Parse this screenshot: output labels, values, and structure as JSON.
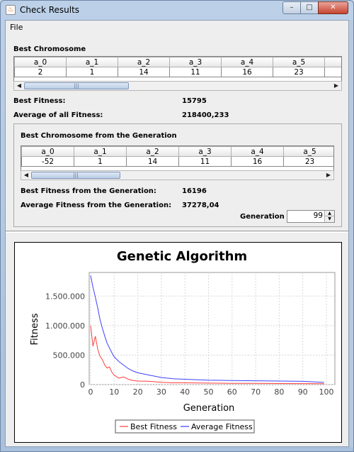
{
  "window": {
    "title": "Check Results"
  },
  "menu": {
    "file": "File"
  },
  "best": {
    "section_label": "Best Chromosome",
    "headers": [
      "a_0",
      "a_1",
      "a_2",
      "a_3",
      "a_4",
      "a_5"
    ],
    "values": [
      "2",
      "1",
      "14",
      "11",
      "16",
      "23"
    ],
    "fitness_label": "Best Fitness:",
    "fitness_value": "15795",
    "avg_label": "Average of all Fitness:",
    "avg_value": "218400,233"
  },
  "generation": {
    "section_label": "Best Chromosome from the Generation",
    "headers": [
      "a_0",
      "a_1",
      "a_2",
      "a_3",
      "a_4",
      "a_5"
    ],
    "values": [
      "-52",
      "1",
      "14",
      "11",
      "16",
      "23"
    ],
    "best_fitness_label": "Best Fitness from the Generation:",
    "best_fitness_value": "16196",
    "avg_fitness_label": "Average Fitness from the Generation:",
    "avg_fitness_value": "37278,04",
    "spinner_label": "Generation",
    "spinner_value": "99"
  },
  "colors": {
    "best_series": "#ff4040",
    "avg_series": "#4040ff",
    "plot_background": "#ffffff"
  },
  "chart_data": {
    "type": "line",
    "title": "Genetic Algorithm",
    "xlabel": "Generation",
    "ylabel": "Fitness",
    "xlim": [
      0,
      100
    ],
    "ylim": [
      0,
      1900000
    ],
    "x_ticks": [
      0,
      10,
      20,
      30,
      40,
      50,
      60,
      70,
      80,
      90,
      100
    ],
    "y_ticks": [
      0,
      500000,
      1000000,
      1500000
    ],
    "y_tick_labels": [
      "0",
      "500.000",
      "1.000.000",
      "1.500.000"
    ],
    "grid": true,
    "legend": "bottom",
    "series": [
      {
        "name": "Best Fitness",
        "x": [
          0,
          1,
          2,
          3,
          4,
          5,
          6,
          7,
          8,
          9,
          10,
          12,
          14,
          16,
          18,
          20,
          25,
          30,
          35,
          40,
          50,
          60,
          70,
          80,
          90,
          99
        ],
        "values": [
          1000000,
          650000,
          820000,
          600000,
          480000,
          420000,
          330000,
          280000,
          300000,
          210000,
          160000,
          110000,
          130000,
          90000,
          70000,
          60000,
          55000,
          40000,
          30000,
          30000,
          25000,
          20000,
          20000,
          18000,
          17000,
          16196
        ]
      },
      {
        "name": "Average Fitness",
        "x": [
          0,
          1,
          2,
          3,
          4,
          5,
          6,
          7,
          8,
          9,
          10,
          12,
          14,
          16,
          18,
          20,
          25,
          30,
          35,
          40,
          50,
          60,
          70,
          80,
          90,
          99
        ],
        "values": [
          1850000,
          1650000,
          1480000,
          1300000,
          1100000,
          950000,
          820000,
          700000,
          620000,
          540000,
          470000,
          390000,
          330000,
          270000,
          230000,
          200000,
          160000,
          120000,
          100000,
          90000,
          75000,
          70000,
          65000,
          60000,
          55000,
          37278
        ]
      }
    ]
  }
}
